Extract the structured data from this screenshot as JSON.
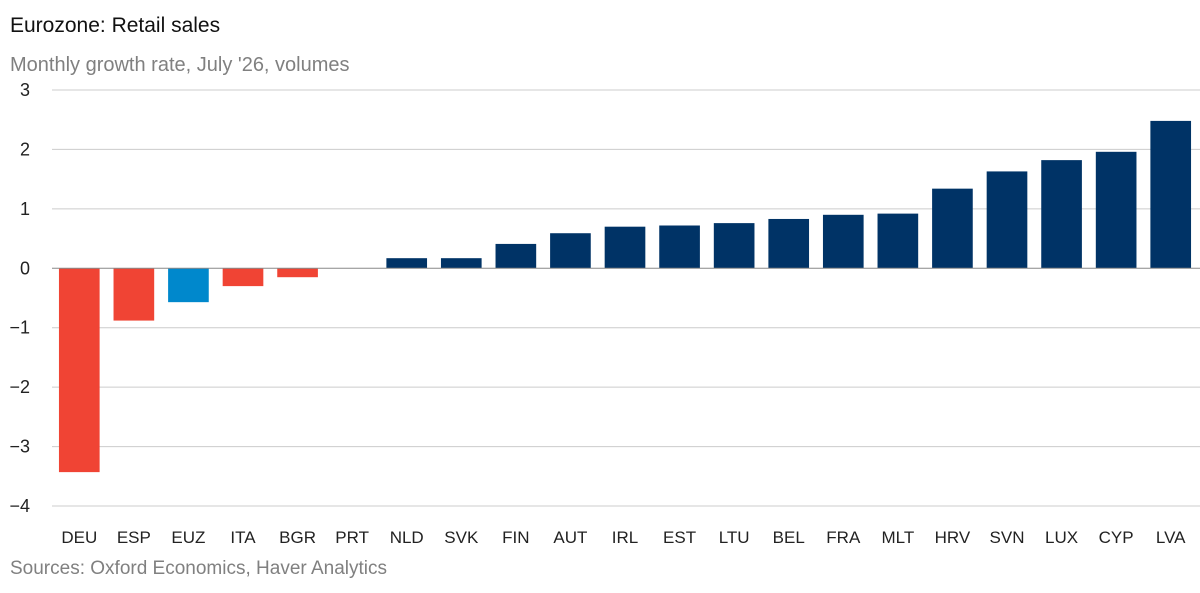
{
  "header": {
    "title": "Eurozone: Retail sales",
    "subtitle": "Monthly growth rate, July '26, volumes"
  },
  "footer": {
    "source": "Sources: Oxford Economics, Haver Analytics"
  },
  "colors": {
    "positive": "#003366",
    "negative": "#f04434",
    "highlight": "#0088cc",
    "gridline": "#cccccc",
    "zero_line": "#888888"
  },
  "chart_data": {
    "type": "bar",
    "title": "Eurozone: Retail sales",
    "subtitle": "Monthly growth rate, July '26, volumes",
    "xlabel": "",
    "ylabel": "",
    "ylim": [
      -4,
      3
    ],
    "yticks": [
      3,
      2,
      1,
      0,
      -1,
      -2,
      -3,
      -4
    ],
    "grid": true,
    "legend": "none",
    "highlight_category": "EUZ",
    "categories": [
      "DEU",
      "ESP",
      "EUZ",
      "ITA",
      "BGR",
      "PRT",
      "NLD",
      "SVK",
      "FIN",
      "AUT",
      "IRL",
      "EST",
      "LTU",
      "BEL",
      "FRA",
      "MLT",
      "HRV",
      "SVN",
      "LUX",
      "CYP",
      "LVA"
    ],
    "values": [
      -3.43,
      -0.88,
      -0.57,
      -0.3,
      -0.15,
      0.0,
      0.17,
      0.17,
      0.41,
      0.59,
      0.7,
      0.72,
      0.76,
      0.83,
      0.9,
      0.92,
      1.34,
      1.63,
      1.82,
      1.96,
      2.48
    ]
  }
}
